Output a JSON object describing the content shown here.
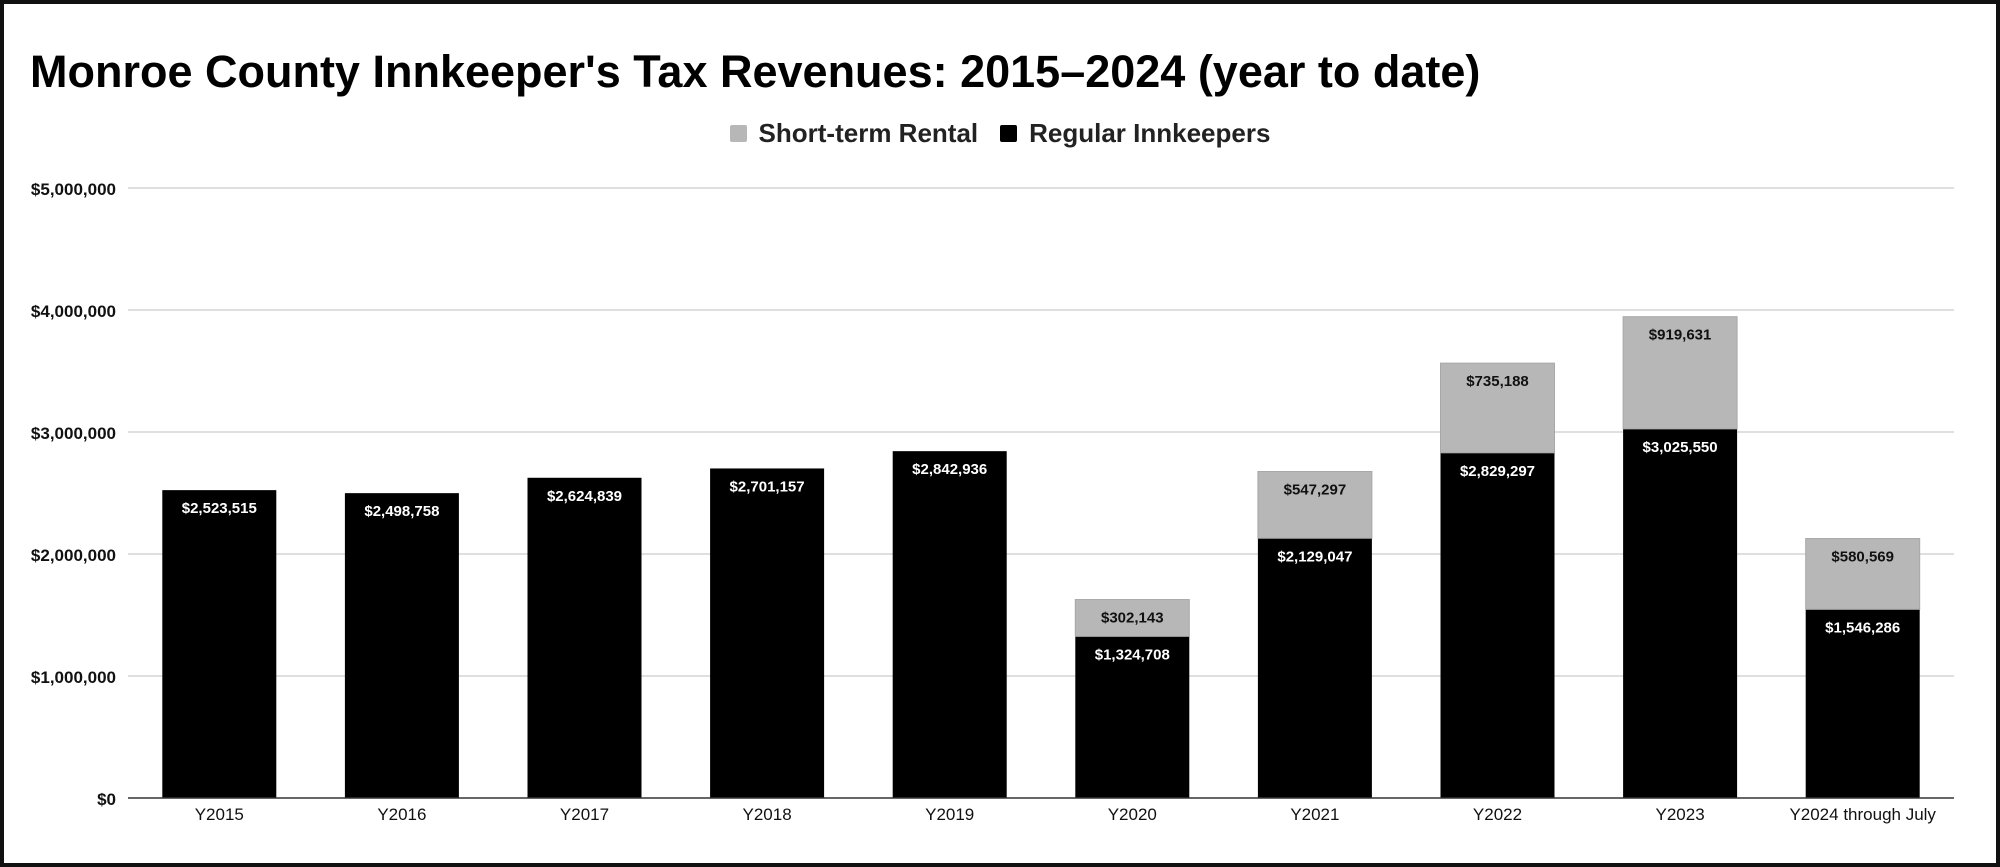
{
  "chart_data": {
    "type": "bar",
    "stacked": true,
    "title": "Monroe County Innkeeper's Tax Revenues: 2015–2024 (year to date)",
    "xlabel": "",
    "ylabel": "",
    "ylim": [
      0,
      5000000
    ],
    "yticks": [
      0,
      1000000,
      2000000,
      3000000,
      4000000,
      5000000
    ],
    "ytick_labels": [
      "$0",
      "$1,000,000",
      "$2,000,000",
      "$3,000,000",
      "$4,000,000",
      "$5,000,000"
    ],
    "grid": true,
    "legend_position": "top-center",
    "categories": [
      "Y2015",
      "Y2016",
      "Y2017",
      "Y2018",
      "Y2019",
      "Y2020",
      "Y2021",
      "Y2022",
      "Y2023",
      "Y2024 through July"
    ],
    "series": [
      {
        "name": "Regular Innkeepers",
        "color": "#000000",
        "label_color": "#ffffff",
        "values": [
          2523515,
          2498758,
          2624839,
          2701157,
          2842936,
          1324708,
          2129047,
          2829297,
          3025550,
          1546286
        ],
        "labels": [
          "$2,523,515",
          "$2,498,758",
          "$2,624,839",
          "$2,701,157",
          "$2,842,936",
          "$1,324,708",
          "$2,129,047",
          "$2,829,297",
          "$3,025,550",
          "$1,546,286"
        ]
      },
      {
        "name": "Short-term Rental",
        "color": "#b7b7b7",
        "label_color": "#111111",
        "values": [
          0,
          0,
          0,
          0,
          0,
          302143,
          547297,
          735188,
          919631,
          580569
        ],
        "labels": [
          "",
          "",
          "",
          "",
          "",
          "$302,143",
          "$547,297",
          "$735,188",
          "$919,631",
          "$580,569"
        ]
      }
    ],
    "legend": [
      {
        "name": "Short-term Rental",
        "color": "#b7b7b7"
      },
      {
        "name": "Regular Innkeepers",
        "color": "#000000"
      }
    ]
  }
}
